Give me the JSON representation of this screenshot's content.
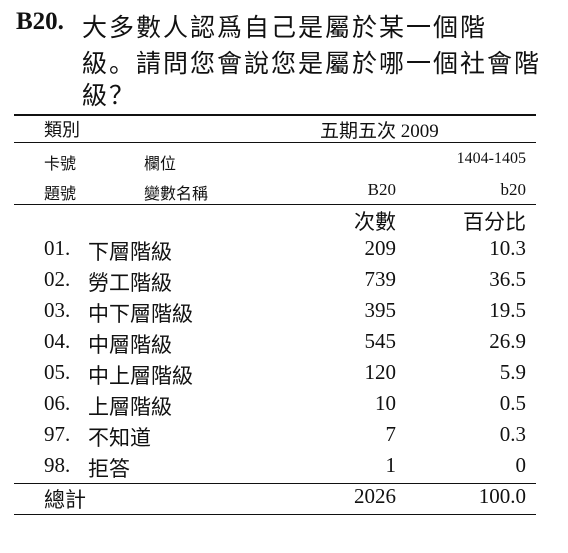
{
  "question": {
    "number": "B20.",
    "lines": [
      "大多數人認爲自己是屬於某一個階",
      "級。請問您會說您是屬於哪一個社會階",
      "級？"
    ]
  },
  "table": {
    "category_label": "類別",
    "wave_label": "五期五次 2009",
    "card_label": "卡號",
    "field_label": "欄位",
    "field_value": "1404-1405",
    "qno_label": "題號",
    "var_label": "變數名稱",
    "qno_value": "B20",
    "var_value": "b20",
    "count_header": "次數",
    "pct_header": "百分比",
    "rows": [
      {
        "code": "01.",
        "label": "下層階級",
        "count": "209",
        "pct": "10.3"
      },
      {
        "code": "02.",
        "label": "勞工階級",
        "count": "739",
        "pct": "36.5"
      },
      {
        "code": "03.",
        "label": "中下層階級",
        "count": "395",
        "pct": "19.5"
      },
      {
        "code": "04.",
        "label": "中層階級",
        "count": "545",
        "pct": "26.9"
      },
      {
        "code": "05.",
        "label": "中上層階級",
        "count": "120",
        "pct": "5.9"
      },
      {
        "code": "06.",
        "label": "上層階級",
        "count": "10",
        "pct": "0.5"
      },
      {
        "code": "97.",
        "label": "不知道",
        "count": "7",
        "pct": "0.3"
      },
      {
        "code": "98.",
        "label": "拒答",
        "count": "1",
        "pct": "0"
      }
    ],
    "total_label": "總計",
    "total_count": "2026",
    "total_pct": "100.0"
  }
}
